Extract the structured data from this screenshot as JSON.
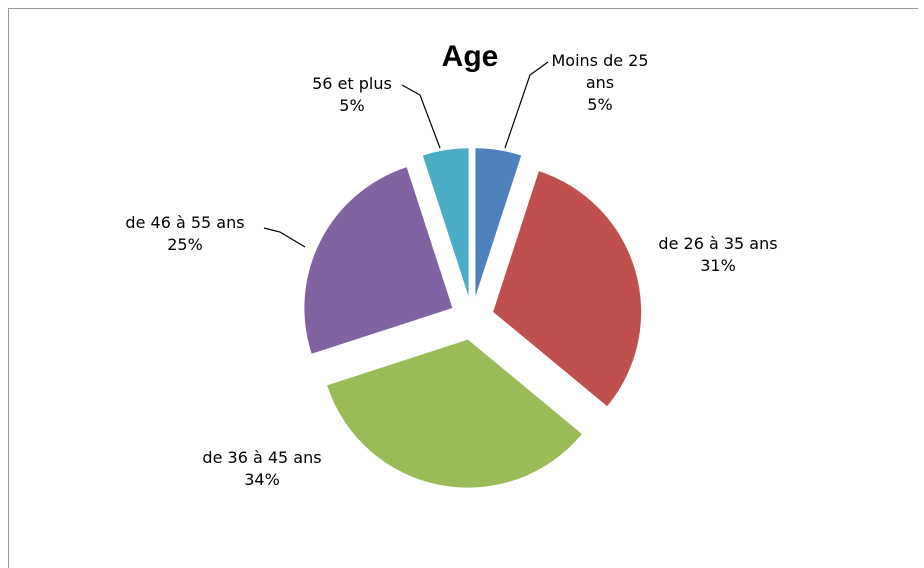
{
  "chart_data": {
    "type": "pie",
    "title": "Age",
    "categories": [
      "Moins de 25 ans",
      "de 26 à 35 ans",
      "de 36 à 45 ans",
      "de 46 à 55 ans",
      "56 et plus"
    ],
    "values": [
      5,
      31,
      34,
      25,
      5
    ],
    "value_labels": [
      "5%",
      "31%",
      "34%",
      "25%",
      "5%"
    ],
    "colors": [
      "#4f81bd",
      "#c0504d",
      "#9bbb59",
      "#8064a2",
      "#4bacc6"
    ]
  }
}
